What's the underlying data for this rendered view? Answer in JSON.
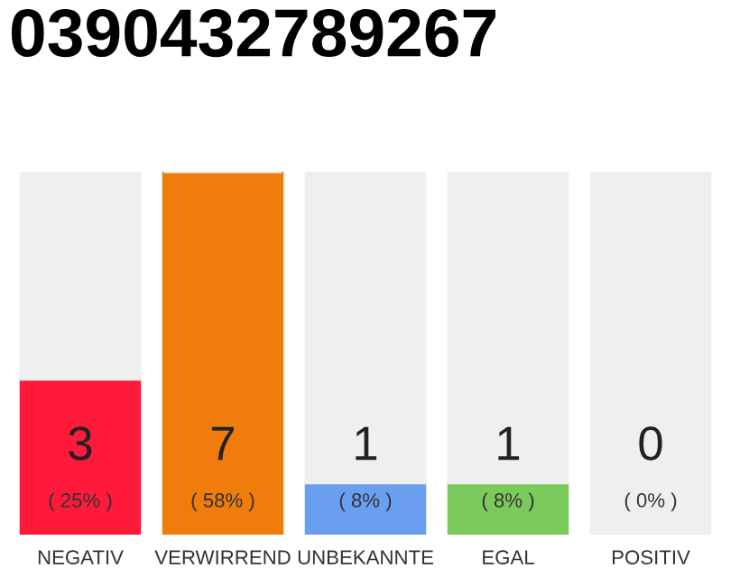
{
  "chart_data": {
    "type": "bar",
    "title": "0390432789267",
    "stacked": true,
    "categories": [
      "NEGATIV",
      "VERWIRREND",
      "UNBEKANNTE",
      "EGAL",
      "POSITIV"
    ],
    "series": [
      {
        "colors": [
          "#ff1a3c",
          "#f07c0c",
          "#6a9ff0",
          "#7cca5c",
          "#2ea44f"
        ],
        "values": [
          3,
          7,
          1,
          1,
          0
        ],
        "value_labels": [
          "3\n( 25% )",
          "7\n( 58% )",
          "1\n( 8% )",
          "1\n( 8% )",
          "0\n( 0% )"
        ]
      },
      {
        "color": "#efefef",
        "values": [
          4,
          0,
          6,
          6,
          7
        ]
      }
    ],
    "grid": false,
    "legend": false
  }
}
